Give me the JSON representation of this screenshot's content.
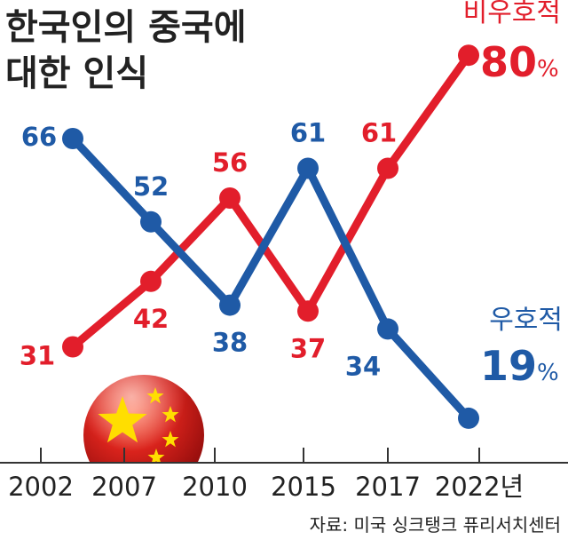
{
  "chart_data": {
    "type": "line",
    "title": "한국인의 중국에 대한 인식",
    "title_lines": [
      "한국인의 중국에",
      "대한 인식"
    ],
    "categories": [
      "2002",
      "2007",
      "2010",
      "2015",
      "2017",
      "2022년"
    ],
    "series": [
      {
        "name": "우호적",
        "values": [
          66,
          52,
          38,
          61,
          34,
          19
        ],
        "color": "#1f5aa6"
      },
      {
        "name": "비우호적",
        "values": [
          31,
          42,
          56,
          37,
          61,
          80
        ],
        "color": "#e21e2b"
      }
    ],
    "ylim": [
      0,
      100
    ],
    "grid": false,
    "final_labels": [
      {
        "series": "비우호적",
        "value": "80",
        "unit": "%"
      },
      {
        "series": "우호적",
        "value": "19",
        "unit": "%"
      }
    ],
    "source": "자료: 미국 싱크탱크 퓨리서치센터"
  }
}
